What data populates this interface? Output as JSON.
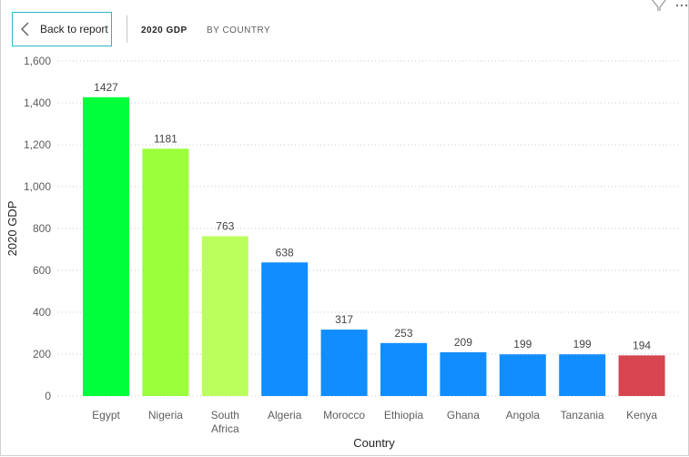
{
  "header": {
    "back_label": "Back to report",
    "crumbs": [
      "2020 GDP",
      "BY COUNTRY"
    ]
  },
  "icons": {
    "back": "chevron-left-icon",
    "filter": "filter-icon",
    "more": "more-options-icon"
  },
  "chart_data": {
    "type": "bar",
    "categories": [
      "Egypt",
      "Nigeria",
      "South Africa",
      "Algeria",
      "Morocco",
      "Ethiopia",
      "Ghana",
      "Angola",
      "Tanzania",
      "Kenya"
    ],
    "category_lines": [
      [
        "Egypt"
      ],
      [
        "Nigeria"
      ],
      [
        "South",
        "Africa"
      ],
      [
        "Algeria"
      ],
      [
        "Morocco"
      ],
      [
        "Ethiopia"
      ],
      [
        "Ghana"
      ],
      [
        "Angola"
      ],
      [
        "Tanzania"
      ],
      [
        "Kenya"
      ]
    ],
    "values": [
      1427,
      1181,
      763,
      638,
      317,
      253,
      209,
      199,
      199,
      194
    ],
    "colors": [
      "#00ff3b",
      "#9bff3b",
      "#bbff5d",
      "#118dff",
      "#118dff",
      "#118dff",
      "#118dff",
      "#118dff",
      "#118dff",
      "#d64550"
    ],
    "xlabel": "Country",
    "ylabel": "2020 GDP",
    "ylim": [
      0,
      1600
    ],
    "yticks": [
      0,
      200,
      400,
      600,
      800,
      1000,
      1200,
      1400,
      1600
    ],
    "ytick_labels": [
      "0",
      "200",
      "400",
      "600",
      "800",
      "1,000",
      "1,200",
      "1,400",
      "1,600"
    ],
    "grid": true,
    "legend": "none"
  }
}
